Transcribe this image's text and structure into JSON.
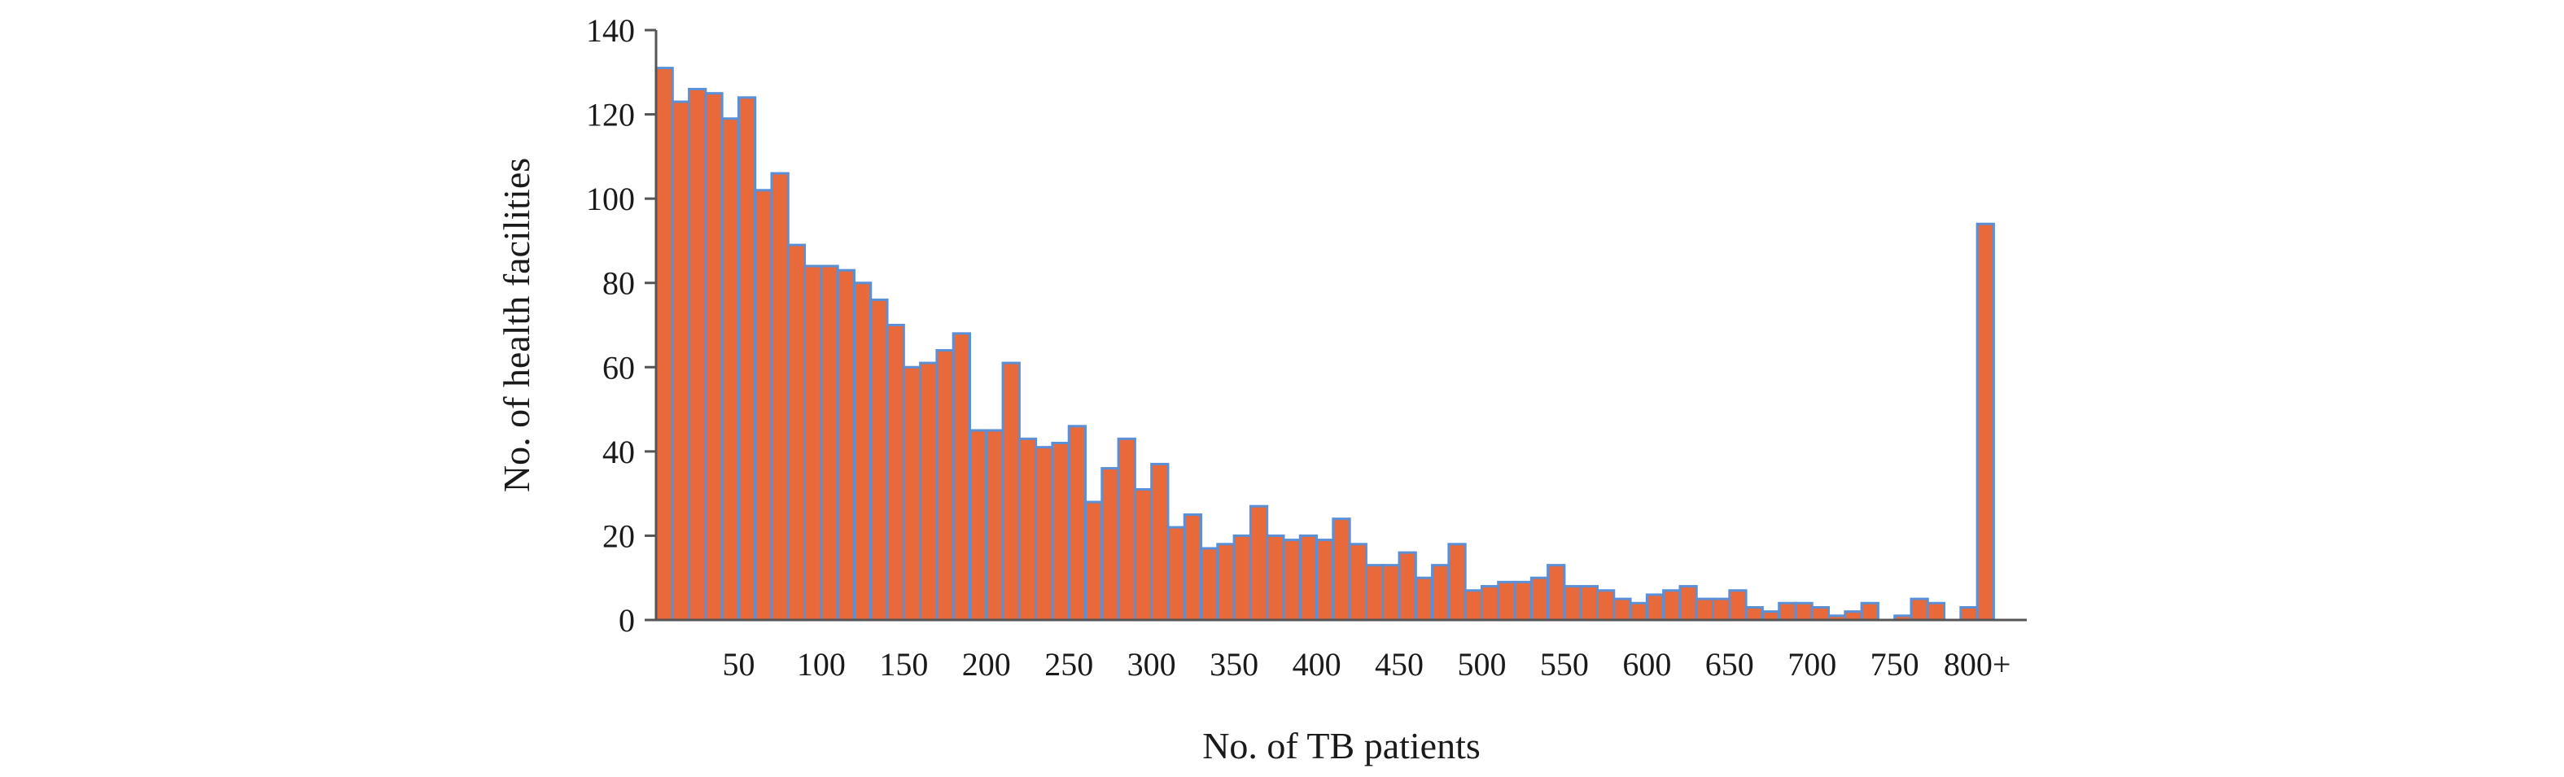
{
  "chart_data": {
    "type": "bar",
    "title": "",
    "xlabel": "No. of TB patients",
    "ylabel": "No. of health facilities",
    "ylim": [
      0,
      140
    ],
    "yticks": [
      0,
      20,
      40,
      60,
      80,
      100,
      120,
      140
    ],
    "grid": false,
    "legend": "none",
    "bar_color": "#e8693a",
    "bar_edge_color": "#5b8fd6",
    "axis_color": "#555555",
    "x_tick_labels": [
      "50",
      "100",
      "150",
      "200",
      "250",
      "300",
      "350",
      "400",
      "450",
      "500",
      "550",
      "600",
      "650",
      "700",
      "750",
      "800+"
    ],
    "x_tick_positions": [
      50,
      100,
      150,
      200,
      250,
      300,
      350,
      400,
      450,
      500,
      550,
      600,
      650,
      700,
      750,
      800
    ],
    "bin_width": 10,
    "bins_start": [
      0,
      10,
      20,
      30,
      40,
      50,
      60,
      70,
      80,
      90,
      100,
      110,
      120,
      130,
      140,
      150,
      160,
      170,
      180,
      190,
      200,
      210,
      220,
      230,
      240,
      250,
      260,
      270,
      280,
      290,
      300,
      310,
      320,
      330,
      340,
      350,
      360,
      370,
      380,
      390,
      400,
      410,
      420,
      430,
      440,
      450,
      460,
      470,
      480,
      490,
      500,
      510,
      520,
      530,
      540,
      550,
      560,
      570,
      580,
      590,
      600,
      610,
      620,
      630,
      640,
      650,
      660,
      670,
      680,
      690,
      700,
      710,
      720,
      730,
      740,
      750,
      760,
      770,
      780,
      790,
      800
    ],
    "values": [
      131,
      123,
      126,
      125,
      119,
      124,
      102,
      106,
      89,
      84,
      84,
      83,
      80,
      76,
      70,
      60,
      61,
      64,
      68,
      45,
      45,
      61,
      43,
      41,
      42,
      46,
      28,
      36,
      43,
      31,
      37,
      22,
      25,
      17,
      18,
      20,
      27,
      20,
      19,
      20,
      19,
      24,
      18,
      13,
      13,
      16,
      10,
      13,
      18,
      7,
      8,
      9,
      9,
      10,
      13,
      8,
      8,
      7,
      5,
      4,
      6,
      7,
      8,
      5,
      5,
      7,
      3,
      2,
      4,
      4,
      3,
      1,
      2,
      4,
      0,
      1,
      5,
      4,
      0,
      3,
      94
    ]
  }
}
